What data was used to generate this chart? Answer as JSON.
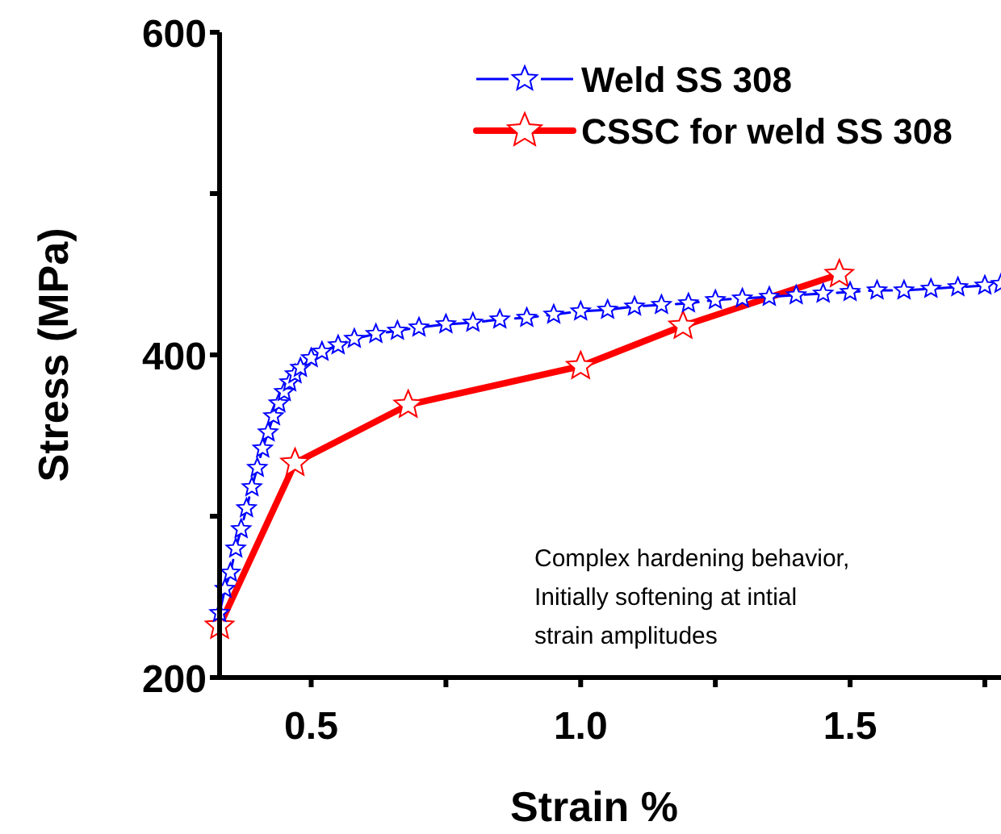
{
  "chart_data": {
    "type": "line",
    "xlabel": "Strain %",
    "ylabel": "Stress (MPa)",
    "xlim": [
      0.33,
      1.78
    ],
    "xticks": [
      0.5,
      {
        "value": 0.75,
        "label": null
      },
      {
        "value": 1.0,
        "label": "1.0"
      },
      {
        "value": 1.25,
        "label": null
      },
      1.5,
      {
        "value": 1.75,
        "label": null
      }
    ],
    "ylim": [
      200,
      600
    ],
    "yticks": [
      200,
      {
        "value": 300,
        "label": null
      },
      400,
      {
        "value": 500,
        "label": null
      },
      600
    ],
    "legend": "top right",
    "grid": false,
    "annotations": [
      "Complex hardening behavior,\nInitially softening at intial\nstrain amplitudes"
    ],
    "series": [
      {
        "name": "Weld SS 308",
        "color": "#0000ff",
        "marker": "star",
        "line_style": "dashed",
        "x": [
          0.33,
          0.34,
          0.35,
          0.36,
          0.37,
          0.38,
          0.39,
          0.4,
          0.41,
          0.42,
          0.43,
          0.44,
          0.45,
          0.46,
          0.47,
          0.48,
          0.5,
          0.52,
          0.55,
          0.58,
          0.62,
          0.66,
          0.7,
          0.75,
          0.8,
          0.85,
          0.9,
          0.95,
          1.0,
          1.05,
          1.1,
          1.15,
          1.2,
          1.25,
          1.3,
          1.35,
          1.4,
          1.45,
          1.5,
          1.55,
          1.6,
          1.65,
          1.7,
          1.75,
          1.78
        ],
        "values": [
          240,
          255,
          265,
          280,
          292,
          305,
          318,
          330,
          342,
          352,
          362,
          370,
          377,
          383,
          388,
          392,
          398,
          402,
          406,
          410,
          413,
          415,
          417,
          419,
          420,
          422,
          423,
          425,
          427,
          428,
          430,
          431,
          432,
          434,
          435,
          436,
          437,
          438,
          439,
          440,
          440,
          441,
          442,
          443,
          444
        ]
      },
      {
        "name": "CSSC for weld SS 308",
        "color": "#ff0000",
        "marker": "star",
        "line_style": "solid",
        "x": [
          0.33,
          0.47,
          0.68,
          1.0,
          1.19,
          1.48
        ],
        "values": [
          232,
          333,
          369,
          393,
          418,
          450
        ]
      }
    ]
  }
}
